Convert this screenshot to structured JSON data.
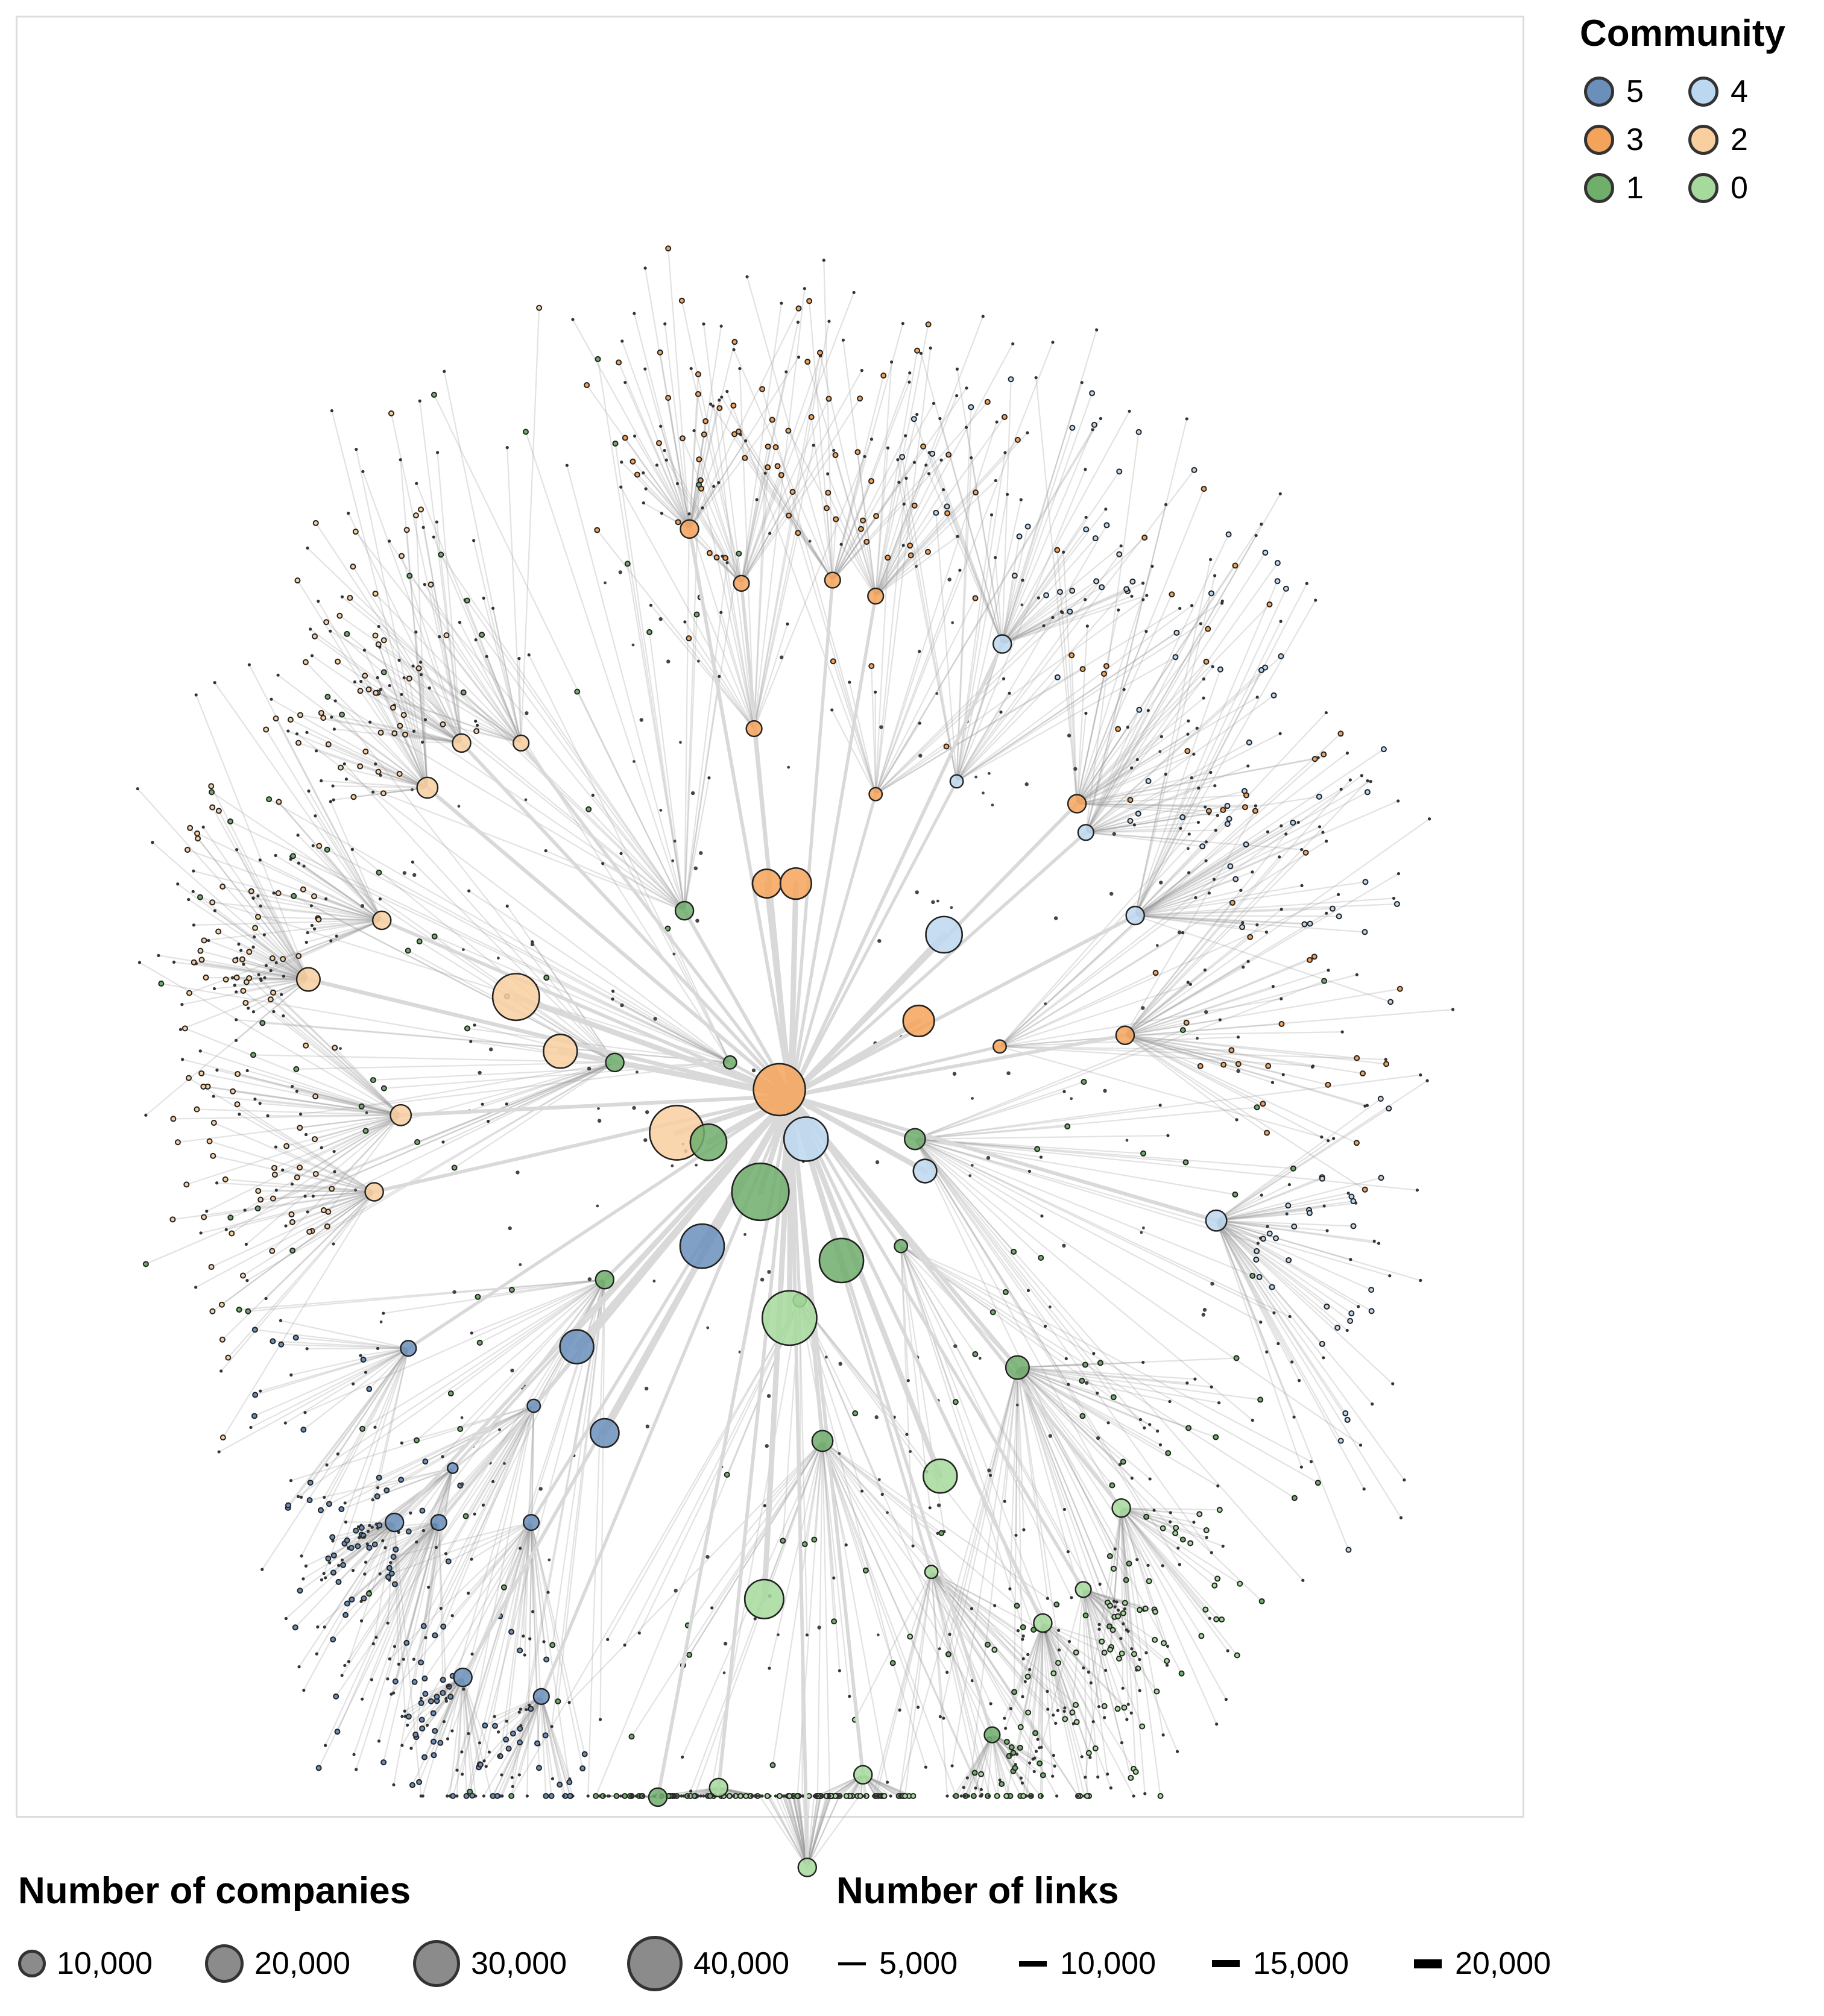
{
  "community_legend": {
    "title": "Community",
    "items": [
      {
        "label": "5",
        "color": "#6b8fbb"
      },
      {
        "label": "4",
        "color": "#bcd7f0"
      },
      {
        "label": "3",
        "color": "#f4a35a"
      },
      {
        "label": "2",
        "color": "#f9cfa0"
      },
      {
        "label": "1",
        "color": "#6fae6b"
      },
      {
        "label": "0",
        "color": "#a6d99c"
      }
    ]
  },
  "size_legend": {
    "title": "Number of companies",
    "items": [
      {
        "label": "10,000",
        "value": 10000
      },
      {
        "label": "20,000",
        "value": 20000
      },
      {
        "label": "30,000",
        "value": 30000
      },
      {
        "label": "40,000",
        "value": 40000
      }
    ]
  },
  "link_legend": {
    "title": "Number of links",
    "items": [
      {
        "label": "5,000",
        "value": 5000
      },
      {
        "label": "10,000",
        "value": 10000
      },
      {
        "label": "15,000",
        "value": 15000
      },
      {
        "label": "20,000",
        "value": 20000
      }
    ]
  },
  "chart_data": {
    "type": "network",
    "node_color_by": "community",
    "node_size_by": "number of companies",
    "edge_width_by": "number of links",
    "hubs": [
      {
        "community": "1",
        "size": 40000
      },
      {
        "community": "2",
        "size": 36000
      },
      {
        "community": "3",
        "size": 30000
      },
      {
        "community": "5",
        "size": 26000
      },
      {
        "community": "4",
        "size": 22000
      },
      {
        "community": "0",
        "size": 32000
      },
      {
        "community": "1",
        "size": 22000
      },
      {
        "community": "1",
        "size": 24000
      },
      {
        "community": "2",
        "size": 27000
      },
      {
        "community": "2",
        "size": 20000
      },
      {
        "community": "3",
        "size": 12000
      },
      {
        "community": "3",
        "size": 13000
      },
      {
        "community": "4",
        "size": 15000
      },
      {
        "community": "3",
        "size": 13000
      },
      {
        "community": "4",
        "size": 8000
      },
      {
        "community": "5",
        "size": 14000
      },
      {
        "community": "5",
        "size": 12000
      },
      {
        "community": "0",
        "size": 17000
      },
      {
        "community": "0",
        "size": 22000
      }
    ]
  }
}
